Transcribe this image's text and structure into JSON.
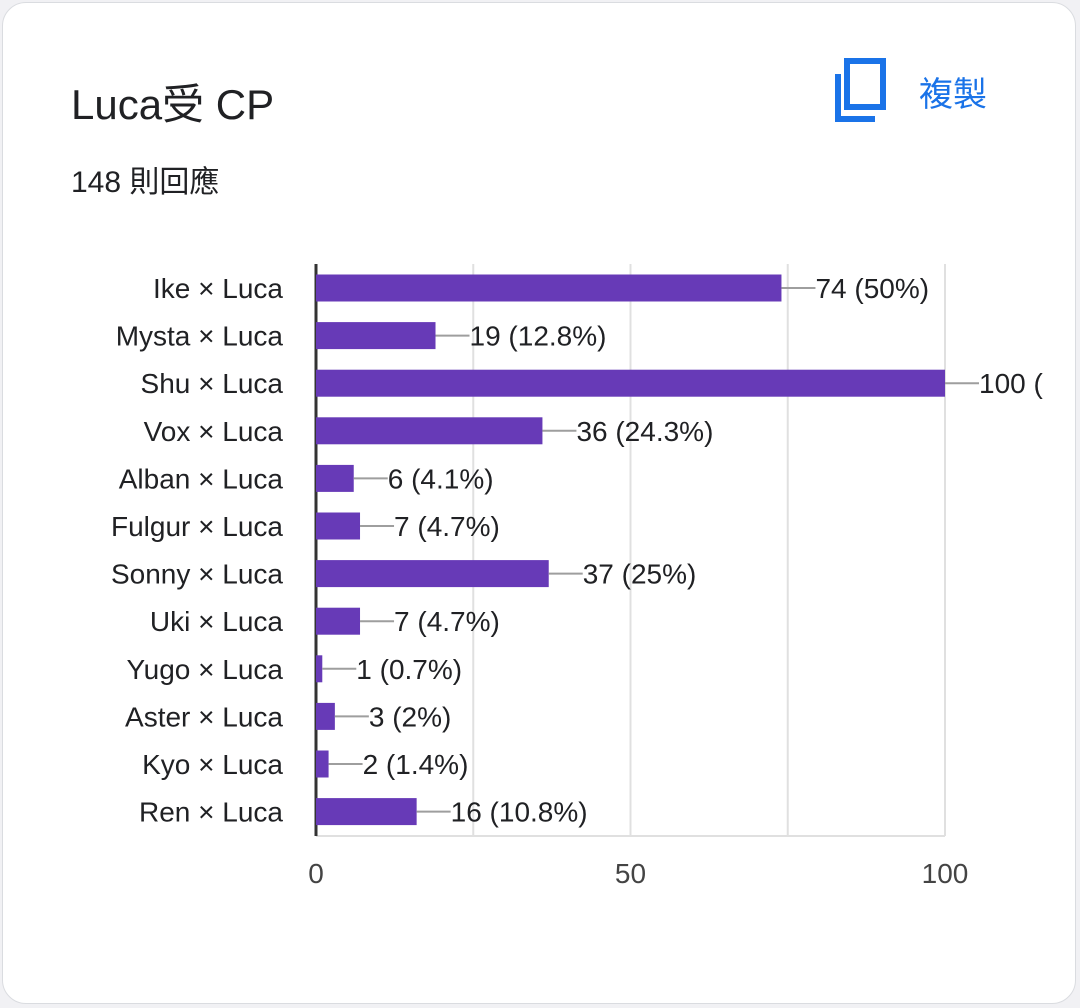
{
  "card": {
    "title": "Luca受 CP",
    "response_count": "148 則回應",
    "copy_label": "複製",
    "copy_icon": "copy-icon"
  },
  "colors": {
    "bar": "#673ab7",
    "accent": "#1a73e8",
    "leader": "#9e9e9e",
    "grid": "#e0e0e0",
    "axis": "#333333",
    "text": "#202124"
  },
  "chart_data": {
    "type": "bar",
    "orientation": "horizontal",
    "categories": [
      "Ike × Luca",
      "Mysta × Luca",
      "Shu × Luca",
      "Vox × Luca",
      "Alban × Luca",
      "Fulgur × Luca",
      "Sonny × Luca",
      "Uki × Luca",
      "Yugo × Luca",
      "Aster × Luca",
      "Kyo × Luca",
      "Ren × Luca"
    ],
    "values": [
      74,
      19,
      100,
      36,
      6,
      7,
      37,
      7,
      1,
      3,
      2,
      16
    ],
    "data_labels": [
      "74 (50%)",
      "19 (12.8%)",
      "100 (",
      "36 (24.3%)",
      "6 (4.1%)",
      "7 (4.7%)",
      "37 (25%)",
      "7 (4.7%)",
      "1 (0.7%)",
      "3 (2%)",
      "2 (1.4%)",
      "16 (10.8%)"
    ],
    "xlim": [
      0,
      100
    ],
    "xticks": [
      0,
      50,
      100
    ],
    "grid": true
  }
}
